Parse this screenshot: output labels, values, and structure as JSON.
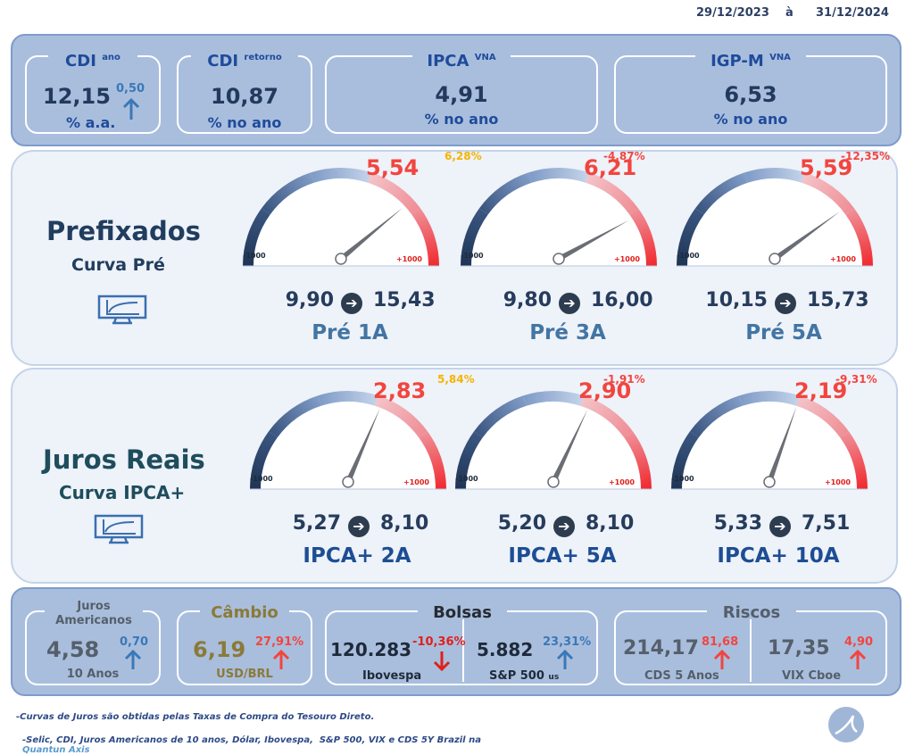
{
  "header": {
    "date_start": "29/12/2023",
    "date_sep": "à",
    "date_end": "31/12/2024"
  },
  "top": {
    "cdi_ano": {
      "label": "CDI",
      "sup": "ano",
      "value": "12,15",
      "change": "0,50",
      "unit": "% a.a."
    },
    "cdi_retorno": {
      "label": "CDI",
      "sup": "retorno",
      "value": "10,87",
      "unit": "% no ano"
    },
    "ipca": {
      "label": "IPCA",
      "sup": "VNA",
      "value": "4,91",
      "unit": "% no ano"
    },
    "igpm": {
      "label": "IGP-M",
      "sup": "VNA",
      "value": "6,53",
      "unit": "% no ano"
    }
  },
  "prefixados": {
    "title": "Prefixados",
    "subtitle": "Curva Pré",
    "icon": "chart-monitor-icon",
    "gauges": [
      {
        "name": "Pré 1A",
        "value": "5,54",
        "change": "6,28%",
        "change_color": "#f5b400",
        "from": "9,90",
        "to": "15,43",
        "min": "-1000",
        "max": "+1000",
        "level": 0.78
      },
      {
        "name": "Pré 3A",
        "value": "6,21",
        "change": "-4,87%",
        "change_color": "#f2453f",
        "from": "9,80",
        "to": "16,00",
        "min": "-1000",
        "max": "+1000",
        "level": 0.84
      },
      {
        "name": "Pré 5A",
        "value": "5,59",
        "change": "-12,35%",
        "change_color": "#f2453f",
        "from": "10,15",
        "to": "15,73",
        "min": "-1000",
        "max": "+1000",
        "level": 0.8
      }
    ]
  },
  "juros_reais": {
    "title": "Juros Reais",
    "subtitle": "Curva IPCA+",
    "icon": "chart-monitor-icon",
    "gauges": [
      {
        "name": "IPCA+ 2A",
        "value": "2,83",
        "change": "5,84%",
        "change_color": "#f5b400",
        "from": "5,27",
        "to": "8,10",
        "min": "-1000",
        "max": "+1000",
        "level": 0.63
      },
      {
        "name": "IPCA+ 5A",
        "value": "2,90",
        "change": "-1,91%",
        "change_color": "#f2453f",
        "from": "5,20",
        "to": "8,10",
        "min": "-1000",
        "max": "+1000",
        "level": 0.64
      },
      {
        "name": "IPCA+ 10A",
        "value": "2,19",
        "change": "-9,31%",
        "change_color": "#f2453f",
        "from": "5,33",
        "to": "7,51",
        "min": "-1000",
        "max": "+1000",
        "level": 0.61
      }
    ]
  },
  "bottom": {
    "juros_americanos": {
      "title": "Juros Americanos",
      "value": "4,58",
      "change": "0,70",
      "unit": "10 Anos"
    },
    "cambio": {
      "title": "Câmbio",
      "value": "6,19",
      "change": "27,91%",
      "unit": "USD/BRL"
    },
    "bolsas": {
      "title": "Bolsas",
      "ibovespa": {
        "value": "120.283",
        "change": "-10,36%",
        "label": "Ibovespa"
      },
      "sp500": {
        "value": "5.882",
        "change": "23,31%",
        "label": "S&P 500",
        "sub": "us"
      }
    },
    "riscos": {
      "title": "Riscos",
      "cds": {
        "value": "214,17",
        "change": "81,68",
        "label": "CDS 5 Anos"
      },
      "vix": {
        "value": "17,35",
        "change": "4,90",
        "label": "VIX Cboe"
      }
    }
  },
  "footer": {
    "line1": "-Curvas de Juros são obtidas pelas Taxas de Compra do Tesouro Direto.",
    "line2": "-Selic, CDI, Juros Americanos de 10 anos, Dólar, Ibovespa,  S&P 500, VIX e CDS 5Y Brazil na",
    "line2_brand": "Quantun Axis"
  },
  "colors": {
    "up": "#3a78b8",
    "down": "#f2453f",
    "gold": "#f5b400",
    "gold_text": "#8a7a3a",
    "gray_text": "#555f6b"
  }
}
